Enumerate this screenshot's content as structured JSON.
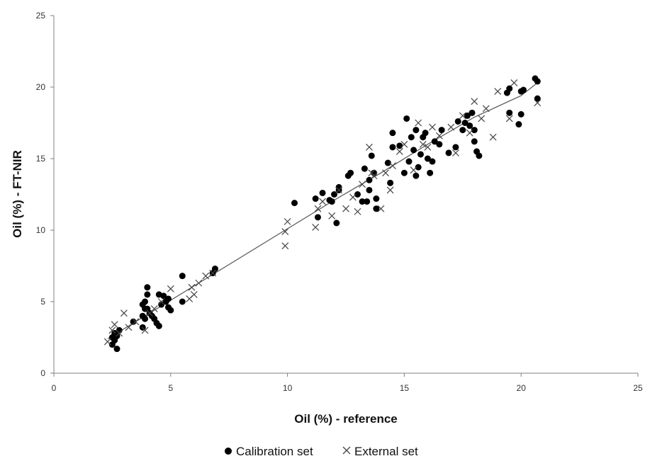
{
  "chart_data": {
    "type": "scatter",
    "xlabel": "Oil (%) - reference",
    "ylabel": "Oil (%) - FT-NIR",
    "xlim": [
      0,
      25
    ],
    "ylim": [
      0,
      25
    ],
    "xticks": [
      0,
      5,
      10,
      15,
      20,
      25
    ],
    "yticks": [
      0,
      5,
      10,
      15,
      20,
      25
    ],
    "tick_labels_x": [
      "0",
      "5",
      "10",
      "15",
      "20",
      "25"
    ],
    "tick_labels_y": [
      "0",
      "5",
      "10",
      "15",
      "20",
      "25"
    ],
    "grid": false,
    "legend_position": "bottom",
    "series": [
      {
        "name": "Calibration set",
        "marker": "circle",
        "color": "#000000",
        "x": [
          2.5,
          2.6,
          2.7,
          2.7,
          2.8,
          2.6,
          2.5,
          3.4,
          3.8,
          3.8,
          3.9,
          3.9,
          4.0,
          4.0,
          4.1,
          3.9,
          3.8,
          4.0,
          4.2,
          4.4,
          4.5,
          4.6,
          4.7,
          4.8,
          4.9,
          4.9,
          5.0,
          4.5,
          4.3,
          5.5,
          5.5,
          6.8,
          6.9,
          10.3,
          11.2,
          11.3,
          11.5,
          11.8,
          12.0,
          12.1,
          12.2,
          12.2,
          11.9,
          12.6,
          12.7,
          13.0,
          13.2,
          13.3,
          13.5,
          13.5,
          13.6,
          13.7,
          13.8,
          13.8,
          13.4,
          14.3,
          14.4,
          14.5,
          14.5,
          14.8,
          15.0,
          15.1,
          15.2,
          15.3,
          15.4,
          15.5,
          15.5,
          15.6,
          15.7,
          15.8,
          15.9,
          16.0,
          16.1,
          16.2,
          16.3,
          16.5,
          16.6,
          16.9,
          17.2,
          17.3,
          17.5,
          17.6,
          17.7,
          17.8,
          17.9,
          18.0,
          18.0,
          18.1,
          18.2,
          19.4,
          19.5,
          19.9,
          20.0,
          20.1,
          20.6,
          20.7,
          20.7,
          20.0,
          19.5
        ],
        "y": [
          2.0,
          2.3,
          1.7,
          2.6,
          3.0,
          2.8,
          2.5,
          3.6,
          3.2,
          4.0,
          4.5,
          5.0,
          5.5,
          6.0,
          4.2,
          3.8,
          4.8,
          4.5,
          4.0,
          3.5,
          3.3,
          4.8,
          5.4,
          5.0,
          4.6,
          5.2,
          4.4,
          5.5,
          3.8,
          5.0,
          6.8,
          7.0,
          7.3,
          11.9,
          12.2,
          10.9,
          12.6,
          12.1,
          12.5,
          10.5,
          13.0,
          12.8,
          12.0,
          13.8,
          14.0,
          12.5,
          12.0,
          14.3,
          13.5,
          12.8,
          15.2,
          14.0,
          11.5,
          12.2,
          12.0,
          14.7,
          13.3,
          15.8,
          16.8,
          15.9,
          14.0,
          17.8,
          14.8,
          16.5,
          15.6,
          17.0,
          13.8,
          14.4,
          15.3,
          16.5,
          16.8,
          15.0,
          14.0,
          14.8,
          16.2,
          16.0,
          17.0,
          15.4,
          15.8,
          17.6,
          17.0,
          17.5,
          18.0,
          17.3,
          18.2,
          16.2,
          17.0,
          15.5,
          15.2,
          19.6,
          18.2,
          17.4,
          19.7,
          19.8,
          20.6,
          20.4,
          19.2,
          18.1,
          19.9
        ]
      },
      {
        "name": "External set",
        "marker": "x",
        "color": "#444444",
        "x": [
          2.3,
          2.5,
          2.6,
          2.8,
          3.0,
          3.2,
          3.5,
          3.9,
          4.1,
          4.3,
          4.6,
          5.0,
          5.8,
          5.9,
          6.0,
          6.2,
          6.5,
          6.8,
          9.9,
          9.9,
          10.0,
          11.2,
          11.3,
          11.5,
          11.9,
          12.2,
          12.5,
          12.8,
          13.0,
          13.2,
          13.5,
          13.6,
          13.7,
          14.0,
          14.2,
          14.4,
          14.5,
          14.8,
          15.0,
          15.4,
          15.6,
          15.8,
          16.0,
          16.2,
          16.5,
          17.0,
          17.2,
          17.5,
          17.8,
          18.0,
          18.3,
          18.5,
          18.8,
          19.0,
          19.5,
          19.7,
          20.7
        ],
        "y": [
          2.2,
          3.0,
          3.4,
          2.8,
          4.2,
          3.2,
          3.6,
          3.0,
          4.2,
          4.5,
          5.0,
          5.9,
          5.2,
          6.0,
          5.5,
          6.3,
          6.8,
          7.0,
          8.9,
          9.9,
          10.6,
          10.2,
          11.5,
          12.0,
          11.0,
          12.8,
          11.5,
          12.3,
          11.3,
          13.2,
          15.8,
          14.0,
          13.8,
          11.5,
          14.0,
          12.8,
          14.5,
          15.5,
          16.0,
          14.2,
          17.5,
          16.0,
          15.8,
          17.2,
          16.6,
          17.2,
          15.4,
          18.0,
          16.8,
          19.0,
          17.8,
          18.5,
          16.5,
          19.7,
          17.8,
          20.3,
          18.9
        ]
      }
    ],
    "trendline": {
      "x": [
        2.3,
        4,
        6,
        8,
        10,
        12,
        14,
        16,
        18,
        20,
        20.7
      ],
      "y": [
        2.4,
        4.1,
        6.1,
        8.1,
        10.1,
        12.1,
        14.0,
        16.0,
        17.9,
        19.4,
        20.3
      ]
    }
  }
}
